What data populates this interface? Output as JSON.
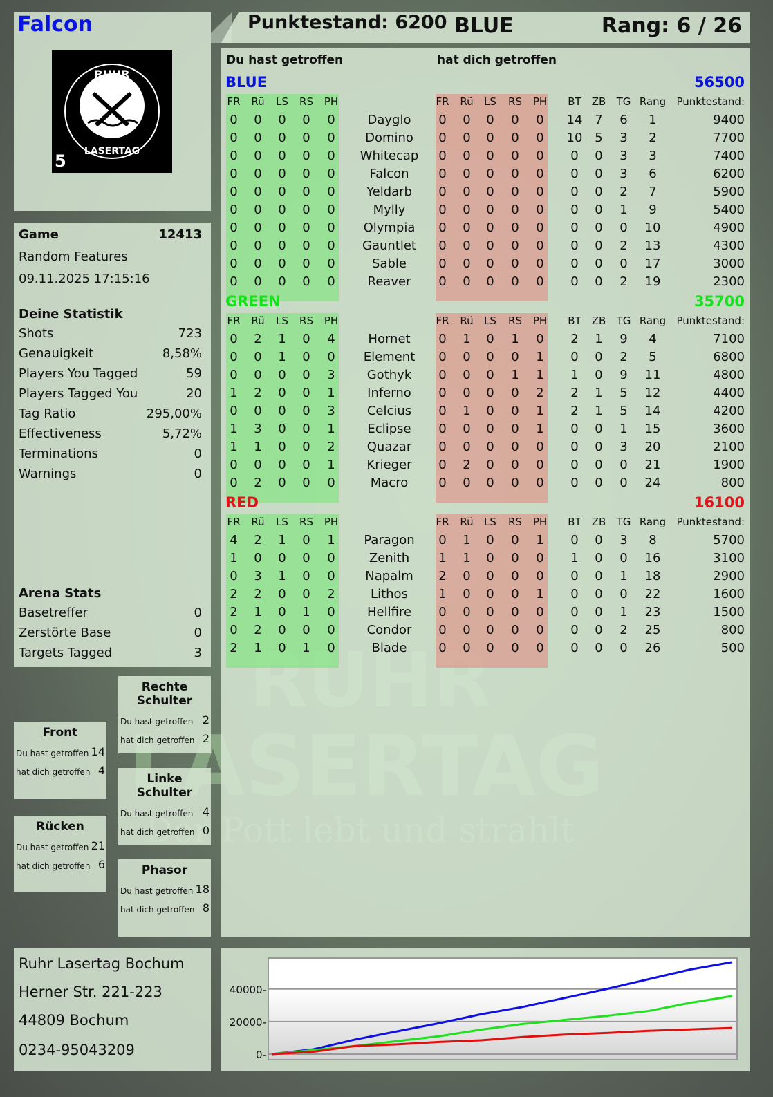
{
  "player": {
    "name": "Falcon",
    "logo_text": "RUHR LASERTAG",
    "logo_number": "5"
  },
  "header": {
    "score_label": "Punktestand: 6200",
    "team": "BLUE",
    "rank": "Rang: 6 / 26"
  },
  "game": {
    "label": "Game",
    "id": "12413",
    "mode": "Random Features",
    "datetime": "09.11.2025 17:15:16"
  },
  "stats": {
    "title": "Deine Statistik",
    "items": [
      {
        "label": "Shots",
        "value": "723"
      },
      {
        "label": "Genauigkeit",
        "value": "8,58%"
      },
      {
        "label": "Players You Tagged",
        "value": "59"
      },
      {
        "label": "Players Tagged You",
        "value": "20"
      },
      {
        "label": "Tag Ratio",
        "value": "295,00%"
      },
      {
        "label": "Effectiveness",
        "value": "5,72%"
      },
      {
        "label": "Terminations",
        "value": "0"
      },
      {
        "label": "Warnings",
        "value": "0"
      }
    ]
  },
  "arena": {
    "title": "Arena Stats",
    "items": [
      {
        "label": "Basetreffer",
        "value": "0"
      },
      {
        "label": "Zerstörte Base",
        "value": "0"
      },
      {
        "label": "Targets Tagged",
        "value": "3"
      }
    ]
  },
  "zones": {
    "front": {
      "title": "Front",
      "you_hit": "14",
      "hit_you": "4"
    },
    "back": {
      "title": "Rücken",
      "you_hit": "21",
      "hit_you": "6"
    },
    "right": {
      "title": "Rechte Schulter",
      "you_hit": "2",
      "hit_you": "2"
    },
    "left": {
      "title": "Linke Schulter",
      "you_hit": "4",
      "hit_you": "0"
    },
    "phasor": {
      "title": "Phasor",
      "you_hit": "18",
      "hit_you": "8"
    },
    "you_hit_label": "Du hast getroffen",
    "hit_you_label": "hat dich getroffen"
  },
  "table": {
    "you_hit_label": "Du hast getroffen",
    "hit_you_label": "hat dich getroffen",
    "hit_cols": [
      "FR",
      "Rü",
      "LS",
      "RS",
      "PH"
    ],
    "stat_cols": [
      "BT",
      "ZB",
      "TG",
      "Rang"
    ],
    "score_col": "Punktestand:",
    "teams": [
      {
        "name": "BLUE",
        "score": "56500",
        "color": "#0a14d6",
        "players": [
          [
            "0 0 0 0 0",
            "Dayglo",
            "0 0 0 0 0",
            "14 7 6 1",
            "9400"
          ],
          [
            "0 0 0 0 0",
            "Domino",
            "0 0 0 0 0",
            "10 5 3 2",
            "7700"
          ],
          [
            "0 0 0 0 0",
            "Whitecap",
            "0 0 0 0 0",
            "0 0 3 3",
            "7400"
          ],
          [
            "0 0 0 0 0",
            "Falcon",
            "0 0 0 0 0",
            "0 0 3 6",
            "6200"
          ],
          [
            "0 0 0 0 0",
            "Yeldarb",
            "0 0 0 0 0",
            "0 0 2 7",
            "5900"
          ],
          [
            "0 0 0 0 0",
            "Mylly",
            "0 0 0 0 0",
            "0 0 1 9",
            "5400"
          ],
          [
            "0 0 0 0 0",
            "Olympia",
            "0 0 0 0 0",
            "0 0 0 10",
            "4900"
          ],
          [
            "0 0 0 0 0",
            "Gauntlet",
            "0 0 0 0 0",
            "0 0 2 13",
            "4300"
          ],
          [
            "0 0 0 0 0",
            "Sable",
            "0 0 0 0 0",
            "0 0 0 17",
            "3000"
          ],
          [
            "0 0 0 0 0",
            "Reaver",
            "0 0 0 0 0",
            "0 0 2 19",
            "2300"
          ]
        ]
      },
      {
        "name": "GREEN",
        "score": "35700",
        "color": "#17e01d",
        "players": [
          [
            "0 2 1 0 4",
            "Hornet",
            "0 1 0 1 0",
            "2 1 9 4",
            "7100"
          ],
          [
            "0 0 1 0 0",
            "Element",
            "0 0 0 0 1",
            "0 0 2 5",
            "6800"
          ],
          [
            "0 0 0 0 3",
            "Gothyk",
            "0 0 0 1 1",
            "1 0 9 11",
            "4800"
          ],
          [
            "1 2 0 0 1",
            "Inferno",
            "0 0 0 0 2",
            "2 1 5 12",
            "4400"
          ],
          [
            "0 0 0 0 3",
            "Celcius",
            "0 1 0 0 1",
            "2 1 5 14",
            "4200"
          ],
          [
            "1 3 0 0 1",
            "Eclipse",
            "0 0 0 0 1",
            "0 0 1 15",
            "3600"
          ],
          [
            "1 1 0 0 2",
            "Quazar",
            "0 0 0 0 0",
            "0 0 3 20",
            "2100"
          ],
          [
            "0 0 0 0 1",
            "Krieger",
            "0 2 0 0 0",
            "0 0 0 21",
            "1900"
          ],
          [
            "0 2 0 0 0",
            "Macro",
            "0 0 0 0 0",
            "0 0 0 24",
            "800"
          ]
        ]
      },
      {
        "name": "RED",
        "score": "16100",
        "color": "#e0141a",
        "players": [
          [
            "4 2 1 0 1",
            "Paragon",
            "0 1 0 0 1",
            "0 0 3 8",
            "5700"
          ],
          [
            "1 0 0 0 0",
            "Zenith",
            "1 1 0 0 0",
            "1 0 0 16",
            "3100"
          ],
          [
            "0 3 1 0 0",
            "Napalm",
            "2 0 0 0 0",
            "0 0 1 18",
            "2900"
          ],
          [
            "2 2 0 0 2",
            "Lithos",
            "1 0 0 0 1",
            "0 0 0 22",
            "1600"
          ],
          [
            "2 1 0 1 0",
            "Hellfire",
            "0 0 0 0 0",
            "0 0 1 23",
            "1500"
          ],
          [
            "0 2 0 0 0",
            "Condor",
            "0 0 0 0 0",
            "0 0 2 25",
            "800"
          ],
          [
            "2 1 0 1 0",
            "Blade",
            "0 0 0 0 0",
            "0 0 0 26",
            "500"
          ]
        ]
      }
    ]
  },
  "address": {
    "lines": [
      "Ruhr Lasertag Bochum",
      "Herner Str. 221-223",
      "44809 Bochum",
      "0234-95043209"
    ]
  },
  "watermark": {
    "line1": "RUHR",
    "line2": "LASERTAG",
    "slogan": "Der Pott lebt und strahlt"
  },
  "chart_data": {
    "type": "line",
    "title": "",
    "xlabel": "",
    "ylabel": "",
    "ylim": [
      0,
      59000
    ],
    "yticks": [
      "0",
      "20000",
      "40000"
    ],
    "grid": true,
    "legend": "none",
    "x": [
      0,
      1,
      2,
      3,
      4,
      5,
      6,
      7,
      8,
      9,
      10,
      11
    ],
    "series": [
      {
        "color": "#1010e0",
        "values": [
          0,
          3000,
          9000,
          14000,
          19000,
          24500,
          29000,
          34500,
          40000,
          46000,
          52000,
          56500
        ]
      },
      {
        "color": "#20e020",
        "values": [
          0,
          2500,
          5000,
          8000,
          11000,
          15000,
          18500,
          21000,
          23500,
          26500,
          31500,
          35700
        ]
      },
      {
        "color": "#e01010",
        "values": [
          0,
          1500,
          5000,
          6000,
          7500,
          8500,
          10500,
          12000,
          13000,
          14300,
          15200,
          16100
        ]
      }
    ]
  }
}
